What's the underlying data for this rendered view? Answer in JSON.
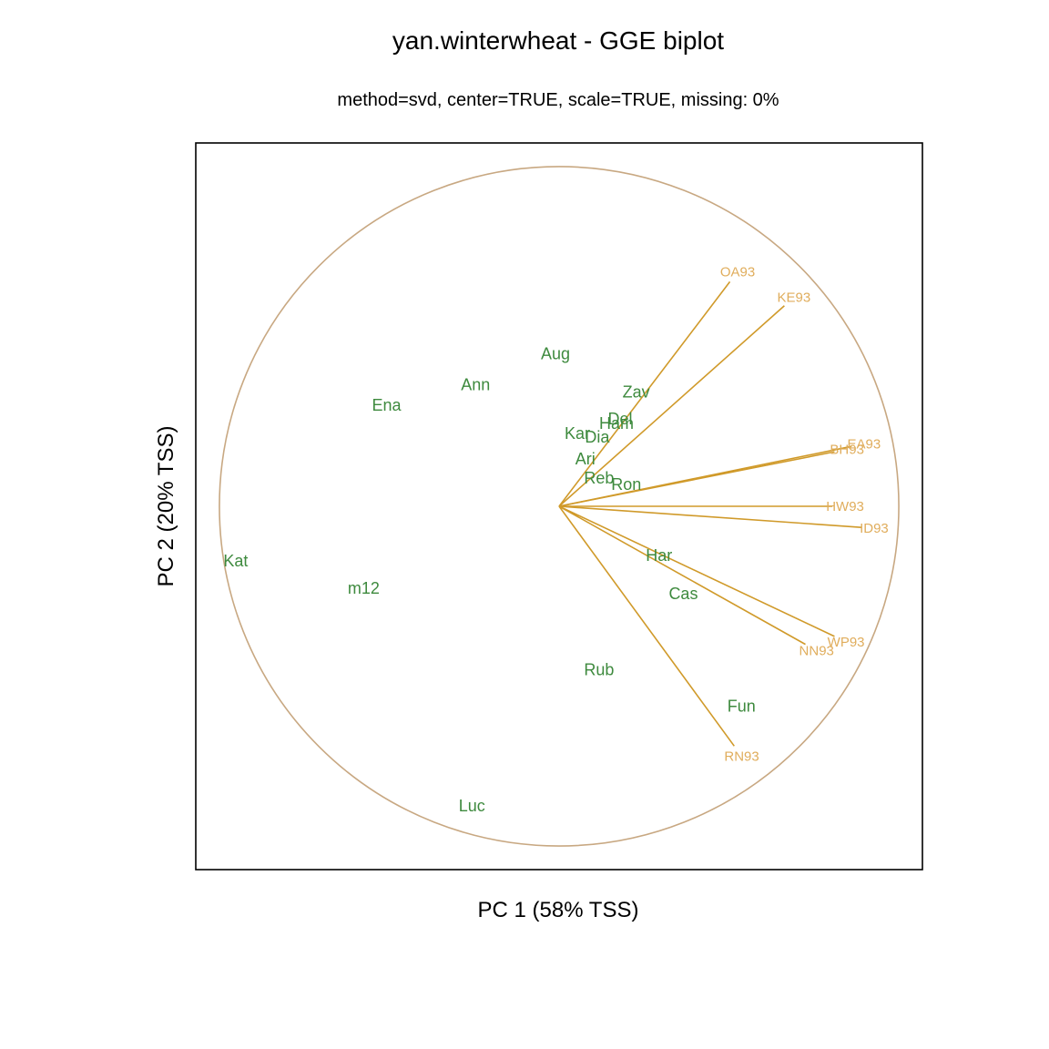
{
  "chart_data": {
    "type": "scatter",
    "title": "yan.winterwheat - GGE biplot",
    "subtitle": "method=svd, center=TRUE, scale=TRUE, missing: 0%",
    "xlabel": "PC 1 (58% TSS)",
    "ylabel": "PC 2 (20% TSS)",
    "xlim": [
      -1.0,
      1.0
    ],
    "ylim": [
      -1.0,
      1.0
    ],
    "grid": false,
    "circle_radius": 0.935,
    "colors": {
      "genotype": "#3e8a3e",
      "environment_line": "#d09a2a",
      "environment_label": "#e0ad5c",
      "circle": "#c8a882",
      "frame": "#000000"
    },
    "genotypes": [
      {
        "name": "Aug",
        "x": -0.01,
        "y": 0.42
      },
      {
        "name": "Ann",
        "x": -0.23,
        "y": 0.335
      },
      {
        "name": "Ena",
        "x": -0.475,
        "y": 0.278
      },
      {
        "name": "Zav",
        "x": 0.212,
        "y": 0.315
      },
      {
        "name": "Del",
        "x": 0.168,
        "y": 0.24
      },
      {
        "name": "Ham",
        "x": 0.158,
        "y": 0.228
      },
      {
        "name": "Kar",
        "x": 0.05,
        "y": 0.2
      },
      {
        "name": "Dia",
        "x": 0.105,
        "y": 0.19
      },
      {
        "name": "Ari",
        "x": 0.072,
        "y": 0.13
      },
      {
        "name": "Reb",
        "x": 0.11,
        "y": 0.078
      },
      {
        "name": "Ron",
        "x": 0.185,
        "y": 0.06
      },
      {
        "name": "Kat",
        "x": -0.89,
        "y": -0.15
      },
      {
        "name": "m12",
        "x": -0.538,
        "y": -0.225
      },
      {
        "name": "Har",
        "x": 0.275,
        "y": -0.135
      },
      {
        "name": "Cas",
        "x": 0.342,
        "y": -0.24
      },
      {
        "name": "Rub",
        "x": 0.11,
        "y": -0.45
      },
      {
        "name": "Fun",
        "x": 0.502,
        "y": -0.55
      },
      {
        "name": "Luc",
        "x": -0.24,
        "y": -0.825
      }
    ],
    "environments": [
      {
        "name": "OA93",
        "x": 0.47,
        "y": 0.618
      },
      {
        "name": "KE93",
        "x": 0.62,
        "y": 0.552
      },
      {
        "name": "EA93",
        "x": 0.805,
        "y": 0.165
      },
      {
        "name": "BH93",
        "x": 0.758,
        "y": 0.15
      },
      {
        "name": "HW93",
        "x": 0.752,
        "y": 0.0
      },
      {
        "name": "ID93",
        "x": 0.832,
        "y": -0.058
      },
      {
        "name": "WP93",
        "x": 0.758,
        "y": -0.358
      },
      {
        "name": "NN93",
        "x": 0.678,
        "y": -0.38
      },
      {
        "name": "RN93",
        "x": 0.482,
        "y": -0.66
      }
    ]
  }
}
